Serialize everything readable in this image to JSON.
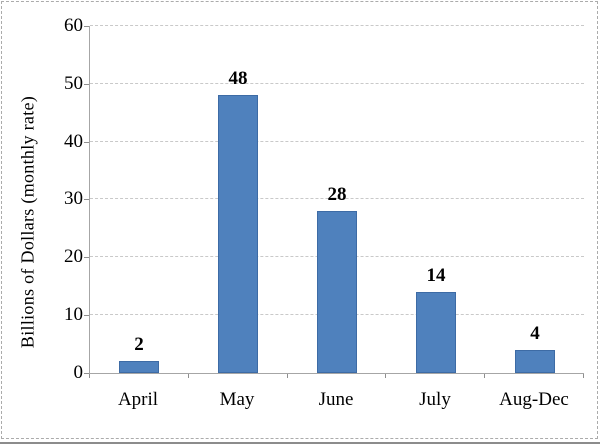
{
  "frame": {
    "border_color": "#ababab",
    "bottom_edge_color": "#8c8c8c",
    "background": "#ffffff"
  },
  "chart_data": {
    "type": "bar",
    "title": "",
    "xlabel": "",
    "ylabel": "Billions of Dollars (monthly rate)",
    "categories": [
      "April",
      "May",
      "June",
      "July",
      "Aug-Dec"
    ],
    "values": [
      2,
      48,
      28,
      14,
      4
    ],
    "data_labels": [
      "2",
      "48",
      "28",
      "14",
      "4"
    ],
    "ylim": [
      0,
      60
    ],
    "yticks": [
      0,
      10,
      20,
      30,
      40,
      50,
      60
    ],
    "grid": true,
    "legend": false,
    "bar_color": "#4f81bd",
    "bar_border_color": "#3d6ba5",
    "gridline_color": "#c9c9c9",
    "axis_color": "#a6a6a6",
    "tick_color": "#8f8f8f",
    "text_color": "#000000"
  }
}
